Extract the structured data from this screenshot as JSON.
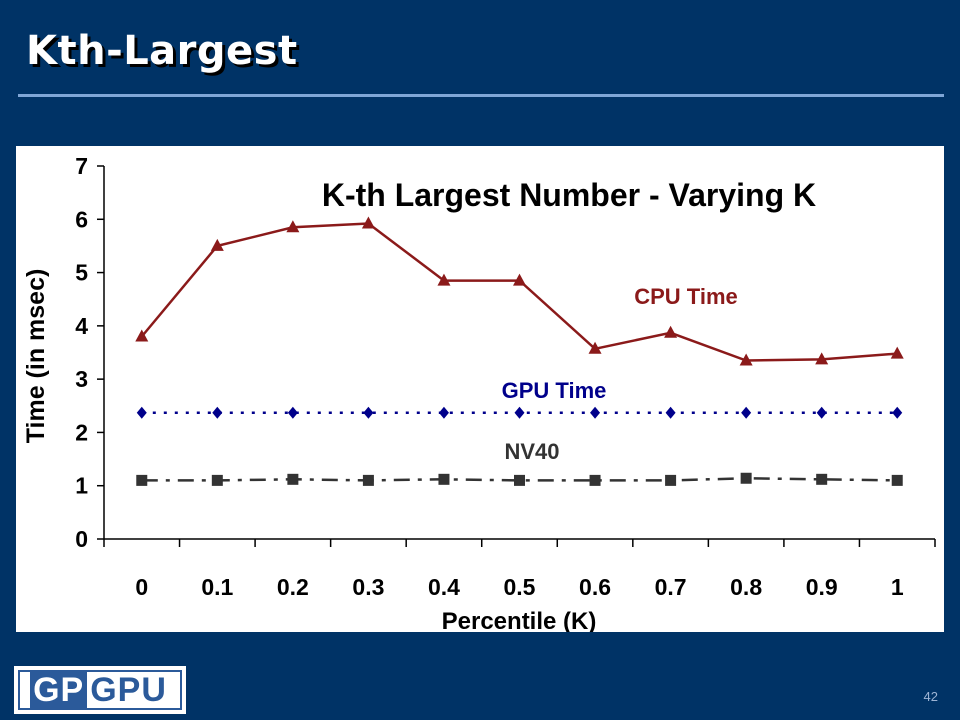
{
  "slide": {
    "title": "Kth-Largest",
    "page_number": "42",
    "logo": {
      "part1": "GP",
      "part2": "GPU"
    }
  },
  "chart_data": {
    "type": "line",
    "title": "K-th Largest Number - Varying K",
    "xlabel": "Percentile (K)",
    "ylabel": "Time (in msec)",
    "categories": [
      "0",
      "0.1",
      "0.2",
      "0.3",
      "0.4",
      "0.5",
      "0.6",
      "0.7",
      "0.8",
      "0.9",
      "1"
    ],
    "ylim": [
      0,
      7
    ],
    "yticks": [
      "0",
      "1",
      "2",
      "3",
      "4",
      "5",
      "6",
      "7"
    ],
    "grid": false,
    "series": [
      {
        "name": "CPU Time",
        "color": "#8b1a1a",
        "marker": "triangle",
        "line": "solid",
        "values": [
          3.8,
          5.5,
          5.85,
          5.92,
          4.85,
          4.85,
          3.57,
          3.87,
          3.35,
          3.37,
          3.48
        ]
      },
      {
        "name": "GPU Time",
        "color": "#00008b",
        "marker": "diamond",
        "line": "dotted",
        "values": [
          2.37,
          2.37,
          2.37,
          2.37,
          2.37,
          2.37,
          2.37,
          2.37,
          2.37,
          2.37,
          2.37
        ]
      },
      {
        "name": "NV40",
        "color": "#333333",
        "marker": "square",
        "line": "dashdot",
        "values": [
          1.1,
          1.1,
          1.12,
          1.1,
          1.12,
          1.1,
          1.1,
          1.1,
          1.14,
          1.12,
          1.1
        ]
      }
    ]
  }
}
